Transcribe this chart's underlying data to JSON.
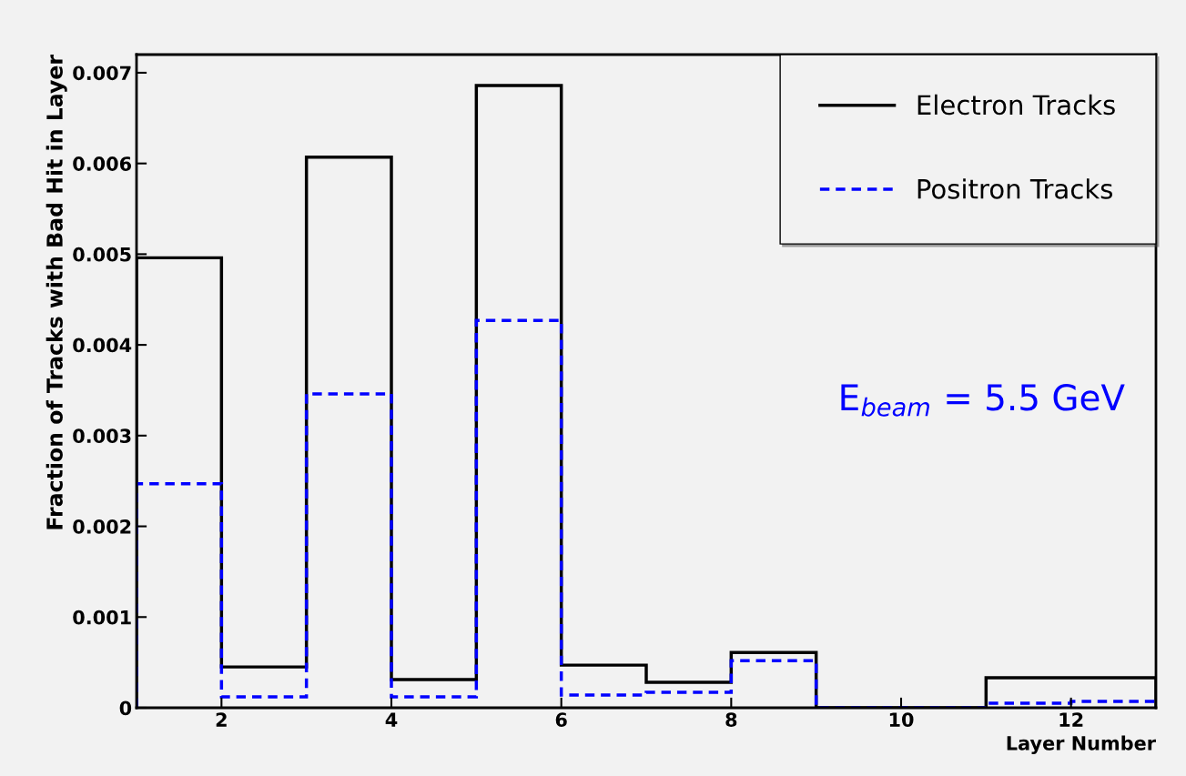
{
  "chart_data": {
    "type": "histogram",
    "xlabel": "Layer Number",
    "ylabel": "Fraction of Tracks with Bad Hit in Layer",
    "bins": [
      1,
      2,
      3,
      4,
      5,
      6,
      7,
      8,
      9,
      10,
      11,
      12,
      13
    ],
    "series": [
      {
        "name": "Electron Tracks",
        "color": "#000000",
        "line_style": "solid",
        "values": [
          0.00496,
          0.00045,
          0.00607,
          0.00031,
          0.00686,
          0.00047,
          0.00028,
          0.00061,
          0,
          0,
          0.00033,
          0.00033
        ]
      },
      {
        "name": "Positron Tracks",
        "color": "#0000ff",
        "line_style": "dashed",
        "values": [
          0.00247,
          0.00012,
          0.00346,
          0.00012,
          0.00427,
          0.00014,
          0.00017,
          0.00052,
          0,
          0,
          5e-05,
          7e-05
        ]
      }
    ],
    "xlim": [
      1,
      13
    ],
    "xticks": [
      2,
      4,
      6,
      8,
      10,
      12
    ],
    "ylim": [
      0,
      0.0072
    ],
    "yticks": [
      0,
      0.001,
      0.002,
      0.003,
      0.004,
      0.005,
      0.006,
      0.007
    ],
    "grid": false,
    "legend": "top right",
    "annotations": [
      "E$_{beam}$ = 5.5 GeV"
    ]
  }
}
